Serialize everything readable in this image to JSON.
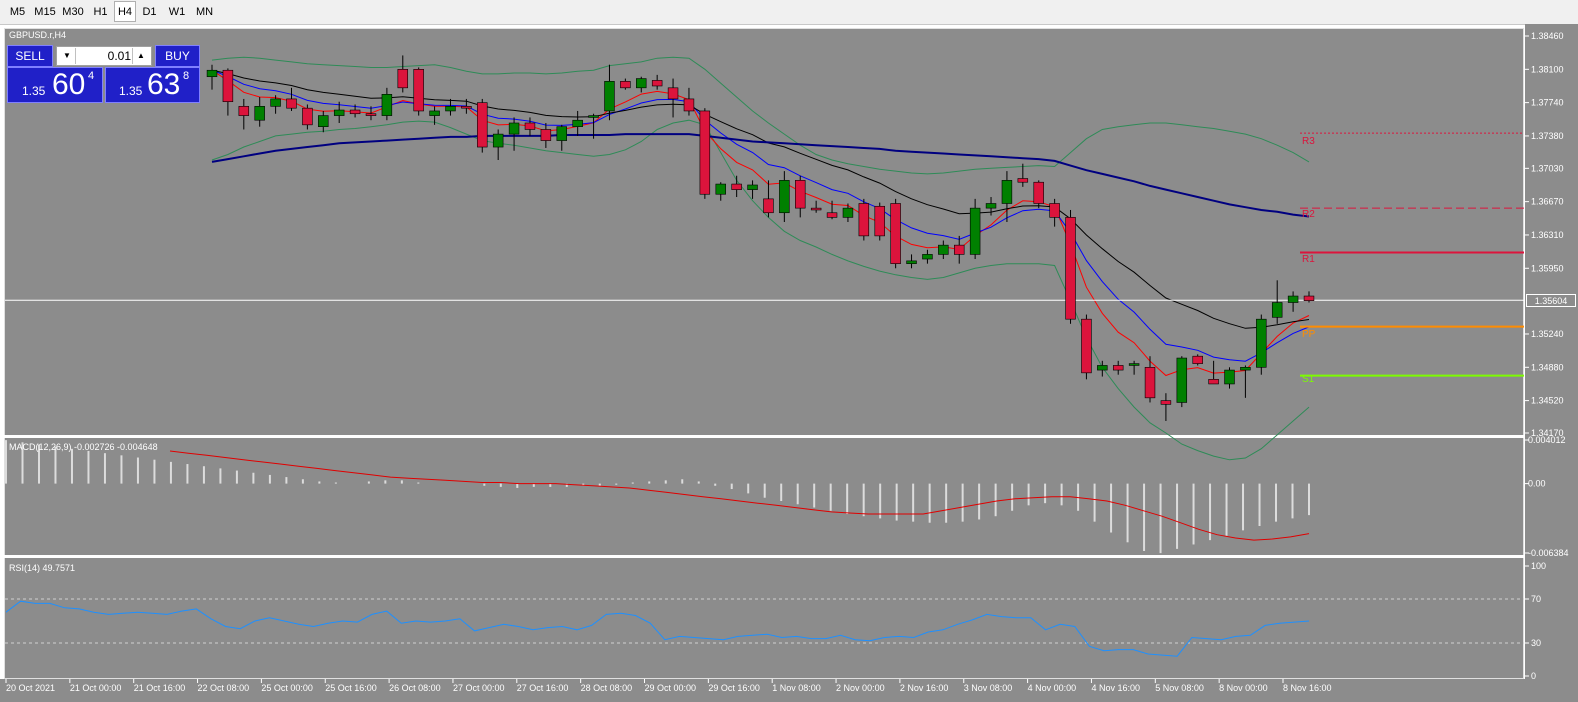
{
  "timeframes": [
    "M5",
    "M15",
    "M30",
    "H1",
    "H4",
    "D1",
    "W1",
    "MN"
  ],
  "active_timeframe": "H4",
  "symbol_label": "GBPUSD.r,H4",
  "trade": {
    "sell_label": "SELL",
    "buy_label": "BUY",
    "lot": "0.01",
    "sell_prefix": "1.35",
    "sell_big": "60",
    "sell_sup": "4",
    "buy_prefix": "1.35",
    "buy_big": "63",
    "buy_sup": "8"
  },
  "current_price_label": "1.35604",
  "macd_label": "MACD(12,26,9) -0.002726 -0.004648",
  "rsi_label": "RSI(14) 49.7571",
  "pivot_labels": {
    "r3": "R3",
    "r2": "R2",
    "r1": "R1",
    "pp": "PP",
    "s1": "S1"
  },
  "colors": {
    "background": "#8c8c8c",
    "bull": "#008000",
    "bear": "#dc143c",
    "ma_slow": "#000080",
    "ma_mid": "#000000",
    "ema_fast": "#0000ff",
    "ema_faster": "#ff0000",
    "bollinger": "#2e8b57",
    "rsi_line": "#1e90ff",
    "pivot_r": "#dc143c",
    "pivot_pp": "#ff8c00",
    "pivot_s1": "#7cfc00"
  },
  "price_ticks": [
    "1.38460",
    "1.38100",
    "1.37740",
    "1.37380",
    "1.37030",
    "1.36670",
    "1.36310",
    "1.35950",
    "1.35240",
    "1.34880",
    "1.34520",
    "1.34170"
  ],
  "macd_ticks": [
    "0.004012",
    "0.00",
    "-0.006384"
  ],
  "rsi_ticks": [
    "100",
    "70",
    "30",
    "0"
  ],
  "time_labels": [
    "20 Oct 2021",
    "21 Oct 00:00",
    "21 Oct 16:00",
    "22 Oct 08:00",
    "25 Oct 00:00",
    "25 Oct 16:00",
    "26 Oct 08:00",
    "27 Oct 00:00",
    "27 Oct 16:00",
    "28 Oct 08:00",
    "29 Oct 00:00",
    "29 Oct 16:00",
    "1 Nov 08:00",
    "2 Nov 00:00",
    "2 Nov 16:00",
    "3 Nov 08:00",
    "4 Nov 00:00",
    "4 Nov 16:00",
    "5 Nov 08:00",
    "8 Nov 00:00",
    "8 Nov 16:00"
  ],
  "chart_data": [
    {
      "type": "candlestick",
      "title": "GBPUSD.r,H4",
      "ylim": [
        1.3417,
        1.3846
      ],
      "candles": [
        {
          "o": 1.3802,
          "h": 1.3815,
          "l": 1.3788,
          "c": 1.3809
        },
        {
          "o": 1.3809,
          "h": 1.3811,
          "l": 1.376,
          "c": 1.3775
        },
        {
          "o": 1.377,
          "h": 1.3778,
          "l": 1.3745,
          "c": 1.376
        },
        {
          "o": 1.3755,
          "h": 1.378,
          "l": 1.3748,
          "c": 1.377
        },
        {
          "o": 1.377,
          "h": 1.3782,
          "l": 1.3762,
          "c": 1.3778
        },
        {
          "o": 1.3778,
          "h": 1.379,
          "l": 1.3765,
          "c": 1.3768
        },
        {
          "o": 1.3768,
          "h": 1.3772,
          "l": 1.3745,
          "c": 1.375
        },
        {
          "o": 1.3748,
          "h": 1.3765,
          "l": 1.3742,
          "c": 1.376
        },
        {
          "o": 1.376,
          "h": 1.3775,
          "l": 1.3752,
          "c": 1.3766
        },
        {
          "o": 1.3766,
          "h": 1.3772,
          "l": 1.3758,
          "c": 1.3762
        },
        {
          "o": 1.3762,
          "h": 1.377,
          "l": 1.3755,
          "c": 1.376
        },
        {
          "o": 1.376,
          "h": 1.379,
          "l": 1.3755,
          "c": 1.3783
        },
        {
          "o": 1.381,
          "h": 1.3825,
          "l": 1.3785,
          "c": 1.379
        },
        {
          "o": 1.381,
          "h": 1.3812,
          "l": 1.376,
          "c": 1.3765
        },
        {
          "o": 1.376,
          "h": 1.377,
          "l": 1.375,
          "c": 1.3765
        },
        {
          "o": 1.3765,
          "h": 1.3778,
          "l": 1.376,
          "c": 1.377
        },
        {
          "o": 1.377,
          "h": 1.3778,
          "l": 1.3762,
          "c": 1.3768
        },
        {
          "o": 1.3774,
          "h": 1.3778,
          "l": 1.372,
          "c": 1.3726
        },
        {
          "o": 1.3726,
          "h": 1.3745,
          "l": 1.3712,
          "c": 1.374
        },
        {
          "o": 1.374,
          "h": 1.3758,
          "l": 1.3722,
          "c": 1.3752
        },
        {
          "o": 1.3752,
          "h": 1.3758,
          "l": 1.3738,
          "c": 1.3745
        },
        {
          "o": 1.3745,
          "h": 1.3752,
          "l": 1.3725,
          "c": 1.3733
        },
        {
          "o": 1.3733,
          "h": 1.375,
          "l": 1.3722,
          "c": 1.3748
        },
        {
          "o": 1.3748,
          "h": 1.3765,
          "l": 1.3738,
          "c": 1.3755
        },
        {
          "o": 1.3758,
          "h": 1.3762,
          "l": 1.3735,
          "c": 1.376
        },
        {
          "o": 1.3765,
          "h": 1.3815,
          "l": 1.3755,
          "c": 1.3797
        },
        {
          "o": 1.3797,
          "h": 1.38,
          "l": 1.3788,
          "c": 1.379
        },
        {
          "o": 1.379,
          "h": 1.3802,
          "l": 1.3785,
          "c": 1.38
        },
        {
          "o": 1.3798,
          "h": 1.3804,
          "l": 1.3788,
          "c": 1.3792
        },
        {
          "o": 1.379,
          "h": 1.38,
          "l": 1.3758,
          "c": 1.3778
        },
        {
          "o": 1.3778,
          "h": 1.379,
          "l": 1.376,
          "c": 1.3765
        },
        {
          "o": 1.3765,
          "h": 1.3768,
          "l": 1.367,
          "c": 1.3675
        },
        {
          "o": 1.3675,
          "h": 1.3688,
          "l": 1.3668,
          "c": 1.3686
        },
        {
          "o": 1.3686,
          "h": 1.3695,
          "l": 1.3672,
          "c": 1.368
        },
        {
          "o": 1.368,
          "h": 1.369,
          "l": 1.367,
          "c": 1.3685
        },
        {
          "o": 1.367,
          "h": 1.369,
          "l": 1.365,
          "c": 1.3655
        },
        {
          "o": 1.3655,
          "h": 1.37,
          "l": 1.3645,
          "c": 1.369
        },
        {
          "o": 1.369,
          "h": 1.3695,
          "l": 1.365,
          "c": 1.366
        },
        {
          "o": 1.366,
          "h": 1.3668,
          "l": 1.3655,
          "c": 1.3658
        },
        {
          "o": 1.3655,
          "h": 1.3668,
          "l": 1.3648,
          "c": 1.365
        },
        {
          "o": 1.365,
          "h": 1.3665,
          "l": 1.3645,
          "c": 1.366
        },
        {
          "o": 1.3665,
          "h": 1.367,
          "l": 1.3625,
          "c": 1.363
        },
        {
          "o": 1.3662,
          "h": 1.3666,
          "l": 1.3625,
          "c": 1.363
        },
        {
          "o": 1.3665,
          "h": 1.367,
          "l": 1.3595,
          "c": 1.36
        },
        {
          "o": 1.36,
          "h": 1.361,
          "l": 1.3595,
          "c": 1.3603
        },
        {
          "o": 1.3605,
          "h": 1.3615,
          "l": 1.36,
          "c": 1.361
        },
        {
          "o": 1.361,
          "h": 1.3625,
          "l": 1.3605,
          "c": 1.362
        },
        {
          "o": 1.362,
          "h": 1.363,
          "l": 1.36,
          "c": 1.361
        },
        {
          "o": 1.361,
          "h": 1.367,
          "l": 1.3605,
          "c": 1.366
        },
        {
          "o": 1.366,
          "h": 1.3672,
          "l": 1.3652,
          "c": 1.3665
        },
        {
          "o": 1.3665,
          "h": 1.37,
          "l": 1.3645,
          "c": 1.369
        },
        {
          "o": 1.3692,
          "h": 1.3708,
          "l": 1.3683,
          "c": 1.3688
        },
        {
          "o": 1.3688,
          "h": 1.369,
          "l": 1.366,
          "c": 1.3665
        },
        {
          "o": 1.3665,
          "h": 1.367,
          "l": 1.364,
          "c": 1.365
        },
        {
          "o": 1.365,
          "h": 1.3658,
          "l": 1.3535,
          "c": 1.354
        },
        {
          "o": 1.354,
          "h": 1.3545,
          "l": 1.3475,
          "c": 1.3482
        },
        {
          "o": 1.3485,
          "h": 1.3495,
          "l": 1.3478,
          "c": 1.349
        },
        {
          "o": 1.349,
          "h": 1.3495,
          "l": 1.348,
          "c": 1.3485
        },
        {
          "o": 1.349,
          "h": 1.3495,
          "l": 1.348,
          "c": 1.3492
        },
        {
          "o": 1.3488,
          "h": 1.35,
          "l": 1.345,
          "c": 1.3455
        },
        {
          "o": 1.3452,
          "h": 1.346,
          "l": 1.343,
          "c": 1.3448
        },
        {
          "o": 1.345,
          "h": 1.35,
          "l": 1.3445,
          "c": 1.3498
        },
        {
          "o": 1.35,
          "h": 1.3502,
          "l": 1.349,
          "c": 1.3492
        },
        {
          "o": 1.3475,
          "h": 1.3495,
          "l": 1.347,
          "c": 1.347
        },
        {
          "o": 1.347,
          "h": 1.3488,
          "l": 1.3465,
          "c": 1.3485
        },
        {
          "o": 1.3485,
          "h": 1.349,
          "l": 1.3455,
          "c": 1.3488
        },
        {
          "o": 1.3488,
          "h": 1.3545,
          "l": 1.348,
          "c": 1.354
        },
        {
          "o": 1.3542,
          "h": 1.3582,
          "l": 1.3535,
          "c": 1.3558
        },
        {
          "o": 1.3558,
          "h": 1.357,
          "l": 1.3548,
          "c": 1.3565
        },
        {
          "o": 1.3565,
          "h": 1.357,
          "l": 1.3558,
          "c": 1.356
        }
      ],
      "pivots": {
        "r3": 1.3741,
        "r2": 1.366,
        "r1": 1.3612,
        "pp": 1.3532,
        "s1": 1.3479
      },
      "current_price": 1.35604,
      "ma_slow": [
        1.371,
        1.3713,
        1.3716,
        1.3719,
        1.3722,
        1.3724,
        1.3726,
        1.3728,
        1.373,
        1.3731,
        1.3732,
        1.3733,
        1.3734,
        1.3735,
        1.3736,
        1.3737,
        1.3737,
        1.3738,
        1.3738,
        1.3738,
        1.3738,
        1.3738,
        1.3739,
        1.3739,
        1.3739,
        1.3739,
        1.374,
        1.374,
        1.374,
        1.374,
        1.374,
        1.3738,
        1.3736,
        1.3734,
        1.3732,
        1.3731,
        1.373,
        1.3729,
        1.3728,
        1.3727,
        1.3726,
        1.3725,
        1.3724,
        1.3722,
        1.3721,
        1.372,
        1.3719,
        1.3718,
        1.3717,
        1.3716,
        1.3715,
        1.3714,
        1.3713,
        1.3711,
        1.3706,
        1.3701,
        1.3697,
        1.3693,
        1.3689,
        1.3684,
        1.368,
        1.3676,
        1.3672,
        1.3668,
        1.3664,
        1.3661,
        1.3658,
        1.3656,
        1.3653,
        1.3651
      ],
      "bb_upper": [
        1.382,
        1.3822,
        1.3823,
        1.3822,
        1.382,
        1.3818,
        1.3816,
        1.3815,
        1.3814,
        1.3813,
        1.3812,
        1.3812,
        1.3813,
        1.3814,
        1.3815,
        1.3812,
        1.3808,
        1.3805,
        1.3805,
        1.3806,
        1.3806,
        1.3805,
        1.3806,
        1.3808,
        1.3809,
        1.3814,
        1.3816,
        1.3818,
        1.3822,
        1.3823,
        1.3822,
        1.381,
        1.3795,
        1.378,
        1.3765,
        1.3752,
        1.374,
        1.3728,
        1.3718,
        1.3712,
        1.3708,
        1.3705,
        1.3702,
        1.37,
        1.3698,
        1.3697,
        1.3698,
        1.37,
        1.3702,
        1.3703,
        1.3704,
        1.3705,
        1.3706,
        1.3705,
        1.372,
        1.3735,
        1.3745,
        1.3748,
        1.375,
        1.3752,
        1.3752,
        1.375,
        1.3748,
        1.3746,
        1.3743,
        1.374,
        1.3735,
        1.3728,
        1.372,
        1.371
      ],
      "bb_lower": [
        1.3712,
        1.3718,
        1.3726,
        1.3732,
        1.3738,
        1.374,
        1.3742,
        1.3743,
        1.3745,
        1.3746,
        1.3748,
        1.375,
        1.3753,
        1.3754,
        1.3753,
        1.3747,
        1.374,
        1.3733,
        1.373,
        1.3728,
        1.3725,
        1.3722,
        1.372,
        1.3718,
        1.3716,
        1.3718,
        1.3723,
        1.3732,
        1.3745,
        1.3752,
        1.3755,
        1.375,
        1.372,
        1.369,
        1.3668,
        1.365,
        1.3635,
        1.3625,
        1.3618,
        1.361,
        1.3603,
        1.3597,
        1.3592,
        1.3588,
        1.3585,
        1.3583,
        1.3585,
        1.359,
        1.3595,
        1.3598,
        1.36,
        1.36,
        1.36,
        1.3598,
        1.356,
        1.352,
        1.3488,
        1.3465,
        1.3445,
        1.3428,
        1.3417,
        1.3405,
        1.3398,
        1.3392,
        1.3388,
        1.339,
        1.34,
        1.3415,
        1.343,
        1.3445
      ],
      "macd_ylim": [
        -0.006384,
        0.004012
      ],
      "macd_hist": [
        0.004,
        0.0038,
        0.0036,
        0.0034,
        0.0032,
        0.003,
        0.0028,
        0.0026,
        0.0024,
        0.0022,
        0.002,
        0.0018,
        0.0016,
        0.0014,
        0.0012,
        0.001,
        0.0008,
        0.0006,
        0.0004,
        0.0002,
        0.0001,
        0.0,
        0.0002,
        0.0003,
        0.0003,
        0.0001,
        0.0,
        0.0,
        0.0,
        -0.0002,
        -0.0003,
        -0.0004,
        -0.0003,
        -0.0003,
        -0.0003,
        -0.0002,
        -0.0002,
        -0.0001,
        0.0001,
        0.0002,
        0.0003,
        0.0004,
        0.0002,
        -0.0002,
        -0.0005,
        -0.0009,
        -0.0013,
        -0.0016,
        -0.0019,
        -0.0022,
        -0.0025,
        -0.0028,
        -0.003,
        -0.0032,
        -0.0034,
        -0.0035,
        -0.0036,
        -0.0036,
        -0.0035,
        -0.0033,
        -0.003,
        -0.0025,
        -0.002,
        -0.0018,
        -0.002,
        -0.0025,
        -0.0035,
        -0.0045,
        -0.0054,
        -0.0062,
        -0.0064,
        -0.006,
        -0.0056,
        -0.0052,
        -0.0048,
        -0.0043,
        -0.0039,
        -0.0035,
        -0.0032,
        -0.0029
      ],
      "macd_signal": [
        0.003,
        0.0028,
        0.0026,
        0.0024,
        0.0022,
        0.002,
        0.0018,
        0.0016,
        0.0014,
        0.0012,
        0.001,
        0.0008,
        0.0006,
        0.0005,
        0.0004,
        0.0003,
        0.0002,
        0.0001,
        0.0001,
        0.0,
        0.0,
        0.0,
        -0.0001,
        -0.0002,
        -0.0003,
        -0.0004,
        -0.0006,
        -0.0008,
        -0.001,
        -0.0012,
        -0.0014,
        -0.0016,
        -0.0018,
        -0.002,
        -0.0022,
        -0.0024,
        -0.0026,
        -0.0027,
        -0.0028,
        -0.0028,
        -0.0028,
        -0.0028,
        -0.0025,
        -0.0022,
        -0.0019,
        -0.0016,
        -0.0014,
        -0.0013,
        -0.0012,
        -0.0012,
        -0.0014,
        -0.0016,
        -0.002,
        -0.0025,
        -0.003,
        -0.0036,
        -0.0042,
        -0.0047,
        -0.005,
        -0.0052,
        -0.0051,
        -0.0049,
        -0.0046
      ],
      "rsi_ylim": [
        0,
        100
      ],
      "rsi": [
        58,
        68,
        66,
        66,
        62,
        61,
        58,
        56,
        57,
        58,
        57,
        56,
        59,
        61,
        52,
        45,
        43,
        50,
        53,
        50,
        47,
        45,
        48,
        50,
        49,
        56,
        59,
        48,
        50,
        49,
        50,
        52,
        41,
        44,
        47,
        45,
        42,
        44,
        45,
        42,
        46,
        56,
        57,
        55,
        48,
        33,
        36,
        35,
        34,
        33,
        36,
        37,
        38,
        35,
        36,
        34,
        34,
        37,
        33,
        32,
        35,
        36,
        35,
        40,
        42,
        47,
        51,
        56,
        54,
        53,
        53,
        42,
        47,
        45,
        27,
        23,
        24,
        24,
        20,
        19,
        18,
        35,
        34,
        33,
        36,
        37,
        46,
        48,
        49,
        50
      ]
    }
  ]
}
